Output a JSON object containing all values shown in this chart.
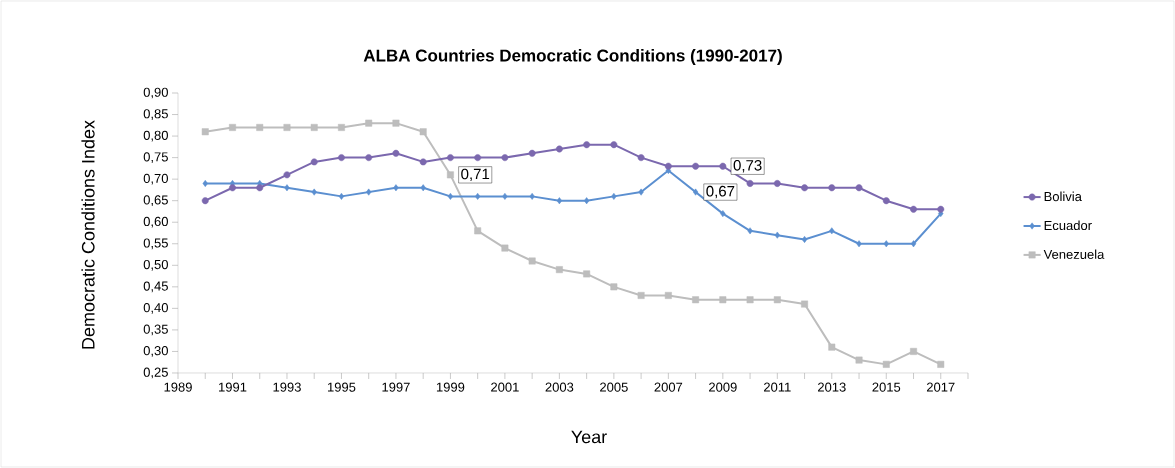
{
  "chart_data": {
    "type": "line",
    "title": "ALBA Countries Democratic Conditions (1990-2017)",
    "xlabel": "Year",
    "ylabel": "Democratic Conditions Index",
    "x": [
      1990,
      1991,
      1992,
      1993,
      1994,
      1995,
      1996,
      1997,
      1998,
      1999,
      2000,
      2001,
      2002,
      2003,
      2004,
      2005,
      2006,
      2007,
      2008,
      2009,
      2010,
      2011,
      2012,
      2013,
      2014,
      2015,
      2016,
      2017
    ],
    "series": [
      {
        "name": "Bolivia",
        "color": "#7b68ae",
        "marker": "circle",
        "values": [
          0.65,
          0.68,
          0.68,
          0.71,
          0.74,
          0.75,
          0.75,
          0.76,
          0.74,
          0.75,
          0.75,
          0.75,
          0.76,
          0.77,
          0.78,
          0.78,
          0.75,
          0.73,
          0.73,
          0.73,
          0.69,
          0.69,
          0.68,
          0.68,
          0.68,
          0.65,
          0.63,
          0.63
        ]
      },
      {
        "name": "Ecuador",
        "color": "#5b8fd0",
        "marker": "diamond",
        "values": [
          0.69,
          0.69,
          0.69,
          0.68,
          0.67,
          0.66,
          0.67,
          0.68,
          0.68,
          0.66,
          0.66,
          0.66,
          0.66,
          0.65,
          0.65,
          0.66,
          0.67,
          0.72,
          0.67,
          0.62,
          0.58,
          0.57,
          0.56,
          0.58,
          0.55,
          0.55,
          0.55,
          0.62
        ]
      },
      {
        "name": "Venezuela",
        "color": "#bdbdbd",
        "marker": "square",
        "values": [
          0.81,
          0.82,
          0.82,
          0.82,
          0.82,
          0.82,
          0.83,
          0.83,
          0.81,
          0.71,
          0.58,
          0.54,
          0.51,
          0.49,
          0.48,
          0.45,
          0.43,
          0.43,
          0.42,
          0.42,
          0.42,
          0.42,
          0.41,
          0.31,
          0.28,
          0.27,
          0.3,
          0.27
        ]
      }
    ],
    "annotations": [
      {
        "text": "0,71",
        "x": 1999,
        "y": 0.71
      },
      {
        "text": "0,73",
        "x": 2009,
        "y": 0.73
      },
      {
        "text": "0,67",
        "x": 2008,
        "y": 0.67
      }
    ],
    "xlim": [
      1989,
      2018
    ],
    "xticks": [
      1989,
      {
        "value": 1990,
        "label": null
      },
      1991,
      {
        "value": 1992,
        "label": null
      },
      1993,
      {
        "value": 1994,
        "label": null
      },
      1995,
      {
        "value": 1996,
        "label": null
      },
      1997,
      {
        "value": 1998,
        "label": null
      },
      1999,
      {
        "value": 2000,
        "label": null
      },
      2001,
      {
        "value": 2002,
        "label": null
      },
      2003,
      {
        "value": 2004,
        "label": null
      },
      2005,
      {
        "value": 2006,
        "label": null
      },
      2007,
      {
        "value": 2008,
        "label": null
      },
      2009,
      {
        "value": 2010,
        "label": null
      },
      2011,
      {
        "value": 2012,
        "label": null
      },
      2013,
      {
        "value": 2014,
        "label": null
      },
      2015,
      {
        "value": 2016,
        "label": null
      },
      2017,
      {
        "value": 2018,
        "label": null
      }
    ],
    "ylim": [
      0.25,
      0.9
    ],
    "yticks": [
      {
        "value": 0.25,
        "label": "0,25"
      },
      {
        "value": 0.3,
        "label": "0,30"
      },
      {
        "value": 0.35,
        "label": "0,35"
      },
      {
        "value": 0.4,
        "label": "0,40"
      },
      {
        "value": 0.45,
        "label": "0,45"
      },
      {
        "value": 0.5,
        "label": "0,50"
      },
      {
        "value": 0.55,
        "label": "0,55"
      },
      {
        "value": 0.6,
        "label": "0,60"
      },
      {
        "value": 0.65,
        "label": "0,65"
      },
      {
        "value": 0.7,
        "label": "0,70"
      },
      {
        "value": 0.75,
        "label": "0,75"
      },
      {
        "value": 0.8,
        "label": "0,80"
      },
      {
        "value": 0.85,
        "label": "0,85"
      },
      {
        "value": 0.9,
        "label": "0,90"
      }
    ],
    "legend": "right"
  }
}
